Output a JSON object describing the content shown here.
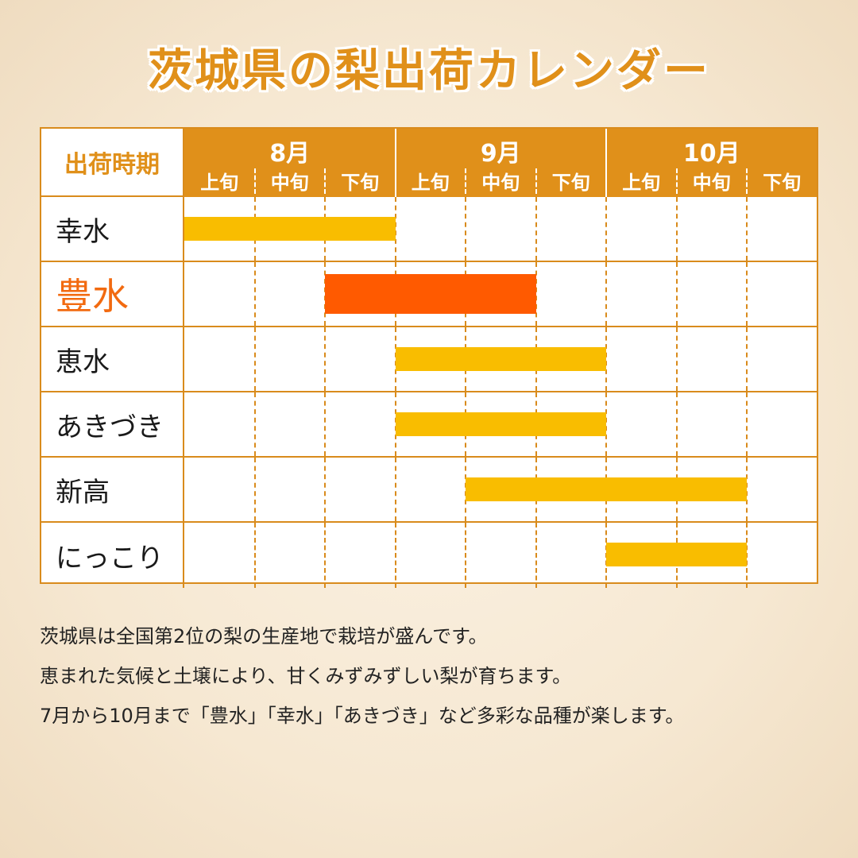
{
  "title": "茨城県の梨出荷カレンダー",
  "chart_data": {
    "type": "table",
    "corner_label": "出荷時期",
    "months": [
      "8月",
      "9月",
      "10月"
    ],
    "periods": [
      "上旬",
      "中旬",
      "下旬",
      "上旬",
      "中旬",
      "下旬",
      "上旬",
      "中旬",
      "下旬"
    ],
    "varieties": [
      {
        "name": "幸水",
        "start": 0,
        "end": 3,
        "color": "#f9bd00",
        "highlight": false
      },
      {
        "name": "豊水",
        "start": 2,
        "end": 5,
        "color": "#ff5a00",
        "highlight": true
      },
      {
        "name": "恵水",
        "start": 3,
        "end": 6,
        "color": "#f9bd00",
        "highlight": false
      },
      {
        "name": "あきづき",
        "start": 3,
        "end": 6,
        "color": "#f9bd00",
        "highlight": false
      },
      {
        "name": "新高",
        "start": 4,
        "end": 8,
        "color": "#f9bd00",
        "highlight": false
      },
      {
        "name": "にっこり",
        "start": 6,
        "end": 8,
        "color": "#f9bd00",
        "highlight": false
      }
    ]
  },
  "description": [
    "茨城県は全国第2位の梨の生産地で栽培が盛んです。",
    "恵まれた気候と土壌により、甘くみずみずしい梨が育ちます。",
    "7月から10月まで「豊水」「幸水」「あきづき」など多彩な品種が楽します。"
  ],
  "colors": {
    "accent": "#e0901a",
    "bar_default": "#f9bd00",
    "bar_highlight": "#ff5a00",
    "highlight_text": "#f26a10"
  }
}
